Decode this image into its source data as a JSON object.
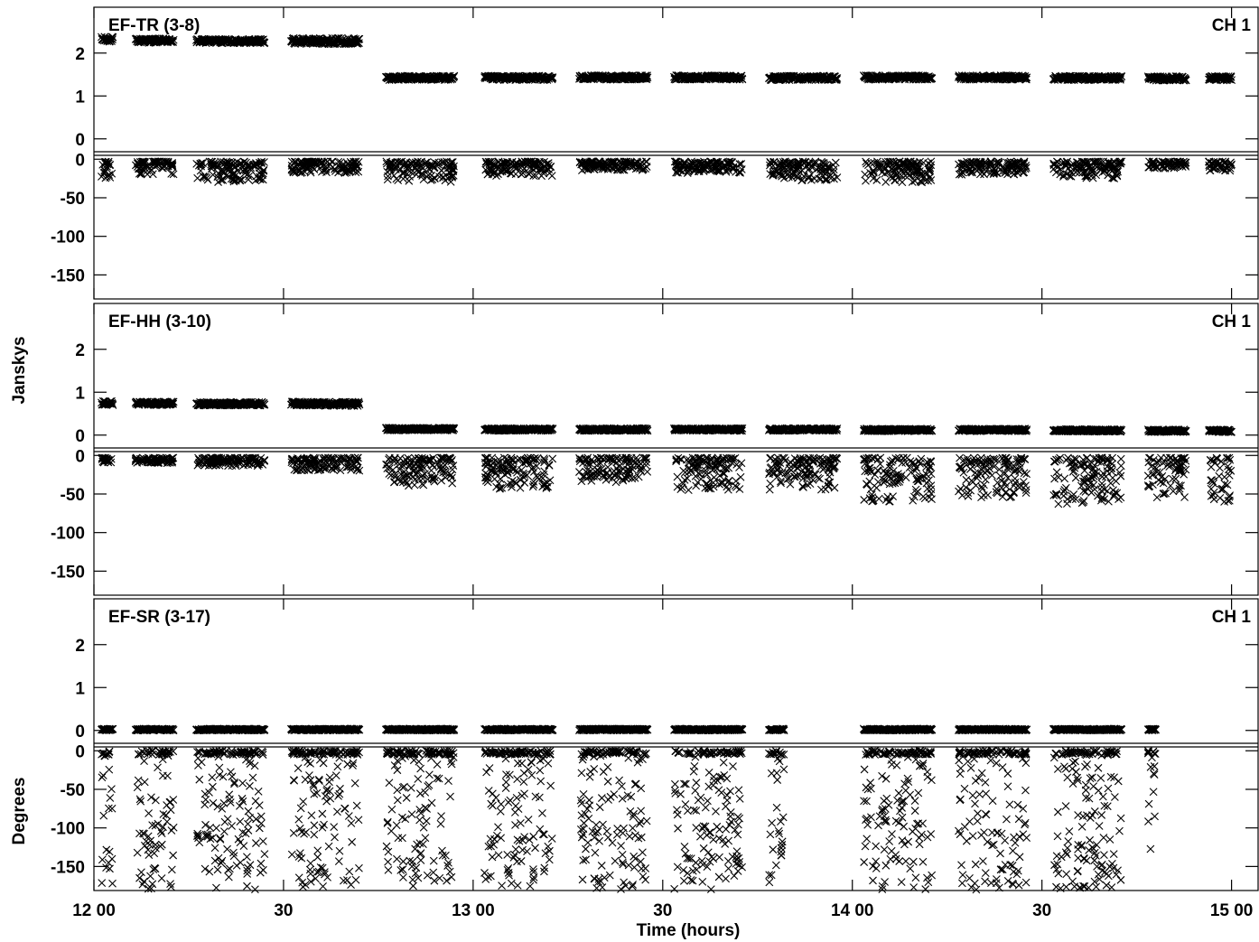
{
  "page": {
    "ylabel_top": "Janskys",
    "ylabel_bottom": "Degrees",
    "xlabel": "Time (hours)"
  },
  "colors": {
    "ink": "#000000",
    "background": "#ffffff"
  },
  "x_axis": {
    "range_hours": [
      12.0,
      15.07
    ],
    "major_ticks": [
      {
        "t": 12.0,
        "label": "12 00"
      },
      {
        "t": 12.5,
        "label": "30"
      },
      {
        "t": 13.0,
        "label": "13 00"
      },
      {
        "t": 13.5,
        "label": "30"
      },
      {
        "t": 14.0,
        "label": "14 00"
      },
      {
        "t": 14.5,
        "label": "30"
      },
      {
        "t": 15.0,
        "label": "15 00"
      }
    ]
  },
  "chart_data": [
    {
      "type": "scatter",
      "baseline": "EF-TR (3-8)",
      "channel": "CH 1",
      "amplitude": {
        "unit": "Janskys",
        "ylim": [
          -0.3,
          2.9
        ],
        "ticks": [
          2,
          1,
          0
        ],
        "series": [
          {
            "t": [
              12.02,
              12.05
            ],
            "mean": 2.32,
            "spread": 0.06
          },
          {
            "t": [
              12.11,
              12.21
            ],
            "mean": 2.29,
            "spread": 0.05
          },
          {
            "t": [
              12.27,
              12.45
            ],
            "mean": 2.28,
            "spread": 0.05
          },
          {
            "t": [
              12.52,
              12.7
            ],
            "mean": 2.28,
            "spread": 0.07
          },
          {
            "t": [
              12.77,
              12.95
            ],
            "mean": 1.42,
            "spread": 0.05
          },
          {
            "t": [
              13.03,
              13.21
            ],
            "mean": 1.42,
            "spread": 0.05
          },
          {
            "t": [
              13.28,
              13.46
            ],
            "mean": 1.43,
            "spread": 0.05
          },
          {
            "t": [
              13.53,
              13.71
            ],
            "mean": 1.43,
            "spread": 0.05
          },
          {
            "t": [
              13.78,
              13.96
            ],
            "mean": 1.42,
            "spread": 0.05
          },
          {
            "t": [
              14.03,
              14.21
            ],
            "mean": 1.43,
            "spread": 0.05
          },
          {
            "t": [
              14.28,
              14.46
            ],
            "mean": 1.43,
            "spread": 0.05
          },
          {
            "t": [
              14.53,
              14.71
            ],
            "mean": 1.42,
            "spread": 0.05
          },
          {
            "t": [
              14.78,
              14.88
            ],
            "mean": 1.41,
            "spread": 0.05
          },
          {
            "t": [
              14.94,
              15.0
            ],
            "mean": 1.41,
            "spread": 0.05
          }
        ]
      },
      "phase": {
        "unit": "Degrees",
        "ylim": [
          -180,
          5
        ],
        "ticks": [
          0,
          -50,
          -100,
          -150
        ],
        "scans": [
          {
            "t": [
              12.02,
              12.05
            ],
            "min": -25
          },
          {
            "t": [
              12.11,
              12.21
            ],
            "min": -20
          },
          {
            "t": [
              12.27,
              12.45
            ],
            "min": -30
          },
          {
            "t": [
              12.52,
              12.7
            ],
            "min": -18
          },
          {
            "t": [
              12.77,
              12.95
            ],
            "min": -30
          },
          {
            "t": [
              13.03,
              13.21
            ],
            "min": -22
          },
          {
            "t": [
              13.28,
              13.46
            ],
            "min": -15
          },
          {
            "t": [
              13.53,
              13.71
            ],
            "min": -18
          },
          {
            "t": [
              13.78,
              13.96
            ],
            "min": -28
          },
          {
            "t": [
              14.03,
              14.21
            ],
            "min": -30
          },
          {
            "t": [
              14.28,
              14.46
            ],
            "min": -20
          },
          {
            "t": [
              14.53,
              14.71
            ],
            "min": -25
          },
          {
            "t": [
              14.78,
              14.88
            ],
            "min": -12
          },
          {
            "t": [
              14.94,
              15.0
            ],
            "min": -15
          }
        ]
      }
    },
    {
      "type": "scatter",
      "baseline": "EF-HH (3-10)",
      "channel": "CH 1",
      "amplitude": {
        "unit": "Janskys",
        "ylim": [
          -0.3,
          2.9
        ],
        "ticks": [
          2,
          1,
          0
        ],
        "series": [
          {
            "t": [
              12.02,
              12.05
            ],
            "mean": 0.75,
            "spread": 0.05
          },
          {
            "t": [
              12.11,
              12.21
            ],
            "mean": 0.74,
            "spread": 0.04
          },
          {
            "t": [
              12.27,
              12.45
            ],
            "mean": 0.73,
            "spread": 0.04
          },
          {
            "t": [
              12.52,
              12.7
            ],
            "mean": 0.73,
            "spread": 0.05
          },
          {
            "t": [
              12.77,
              12.95
            ],
            "mean": 0.14,
            "spread": 0.03
          },
          {
            "t": [
              13.03,
              13.21
            ],
            "mean": 0.13,
            "spread": 0.03
          },
          {
            "t": [
              13.28,
              13.46
            ],
            "mean": 0.13,
            "spread": 0.03
          },
          {
            "t": [
              13.53,
              13.71
            ],
            "mean": 0.13,
            "spread": 0.03
          },
          {
            "t": [
              13.78,
              13.96
            ],
            "mean": 0.13,
            "spread": 0.03
          },
          {
            "t": [
              14.03,
              14.21
            ],
            "mean": 0.12,
            "spread": 0.03
          },
          {
            "t": [
              14.28,
              14.46
            ],
            "mean": 0.12,
            "spread": 0.03
          },
          {
            "t": [
              14.53,
              14.71
            ],
            "mean": 0.11,
            "spread": 0.03
          },
          {
            "t": [
              14.78,
              14.88
            ],
            "mean": 0.1,
            "spread": 0.03
          },
          {
            "t": [
              14.94,
              15.0
            ],
            "mean": 0.1,
            "spread": 0.03
          }
        ]
      },
      "phase": {
        "unit": "Degrees",
        "ylim": [
          -180,
          5
        ],
        "ticks": [
          0,
          -50,
          -100,
          -150
        ],
        "scans": [
          {
            "t": [
              12.02,
              12.05
            ],
            "min": -10
          },
          {
            "t": [
              12.11,
              12.21
            ],
            "min": -10
          },
          {
            "t": [
              12.27,
              12.45
            ],
            "min": -14
          },
          {
            "t": [
              12.52,
              12.7
            ],
            "min": -20
          },
          {
            "t": [
              12.77,
              12.95
            ],
            "min": -40
          },
          {
            "t": [
              13.03,
              13.21
            ],
            "min": -45
          },
          {
            "t": [
              13.28,
              13.46
            ],
            "min": -35
          },
          {
            "t": [
              13.53,
              13.71
            ],
            "min": -45
          },
          {
            "t": [
              13.78,
              13.96
            ],
            "min": -45
          },
          {
            "t": [
              14.03,
              14.21
            ],
            "min": -60
          },
          {
            "t": [
              14.28,
              14.46
            ],
            "min": -55
          },
          {
            "t": [
              14.53,
              14.71
            ],
            "min": -65
          },
          {
            "t": [
              14.78,
              14.88
            ],
            "min": -55
          },
          {
            "t": [
              14.94,
              15.0
            ],
            "min": -60
          }
        ]
      }
    },
    {
      "type": "scatter",
      "baseline": "EF-SR (3-17)",
      "channel": "CH 1",
      "amplitude": {
        "unit": "Janskys",
        "ylim": [
          -0.3,
          2.9
        ],
        "ticks": [
          2,
          1,
          0
        ],
        "series": [
          {
            "t": [
              12.02,
              12.05
            ],
            "mean": 0.02,
            "spread": 0.02
          },
          {
            "t": [
              12.11,
              12.21
            ],
            "mean": 0.02,
            "spread": 0.02
          },
          {
            "t": [
              12.27,
              12.45
            ],
            "mean": 0.02,
            "spread": 0.02
          },
          {
            "t": [
              12.52,
              12.7
            ],
            "mean": 0.02,
            "spread": 0.02
          },
          {
            "t": [
              12.77,
              12.95
            ],
            "mean": 0.02,
            "spread": 0.02
          },
          {
            "t": [
              13.03,
              13.21
            ],
            "mean": 0.02,
            "spread": 0.02
          },
          {
            "t": [
              13.28,
              13.46
            ],
            "mean": 0.02,
            "spread": 0.02
          },
          {
            "t": [
              13.53,
              13.71
            ],
            "mean": 0.02,
            "spread": 0.02
          },
          {
            "t": [
              13.78,
              13.82
            ],
            "mean": 0.02,
            "spread": 0.02
          },
          {
            "t": [
              14.03,
              14.21
            ],
            "mean": 0.02,
            "spread": 0.02
          },
          {
            "t": [
              14.28,
              14.46
            ],
            "mean": 0.02,
            "spread": 0.02
          },
          {
            "t": [
              14.53,
              14.71
            ],
            "mean": 0.02,
            "spread": 0.02
          },
          {
            "t": [
              14.78,
              14.8
            ],
            "mean": 0.02,
            "spread": 0.02
          }
        ]
      },
      "phase": {
        "unit": "Degrees",
        "ylim": [
          -180,
          5
        ],
        "ticks": [
          0,
          -50,
          -100,
          -150
        ],
        "scans": [
          {
            "t": [
              12.02,
              12.05
            ],
            "min": -180
          },
          {
            "t": [
              12.11,
              12.21
            ],
            "min": -180
          },
          {
            "t": [
              12.27,
              12.45
            ],
            "min": -180
          },
          {
            "t": [
              12.52,
              12.7
            ],
            "min": -180
          },
          {
            "t": [
              12.77,
              12.95
            ],
            "min": -180
          },
          {
            "t": [
              13.03,
              13.21
            ],
            "min": -180
          },
          {
            "t": [
              13.28,
              13.46
            ],
            "min": -180
          },
          {
            "t": [
              13.53,
              13.71
            ],
            "min": -180
          },
          {
            "t": [
              13.78,
              13.82
            ],
            "min": -180
          },
          {
            "t": [
              14.03,
              14.21
            ],
            "min": -180
          },
          {
            "t": [
              14.28,
              14.46
            ],
            "min": -180
          },
          {
            "t": [
              14.53,
              14.71
            ],
            "min": -180
          },
          {
            "t": [
              14.78,
              14.8
            ],
            "min": -170
          }
        ]
      }
    }
  ]
}
